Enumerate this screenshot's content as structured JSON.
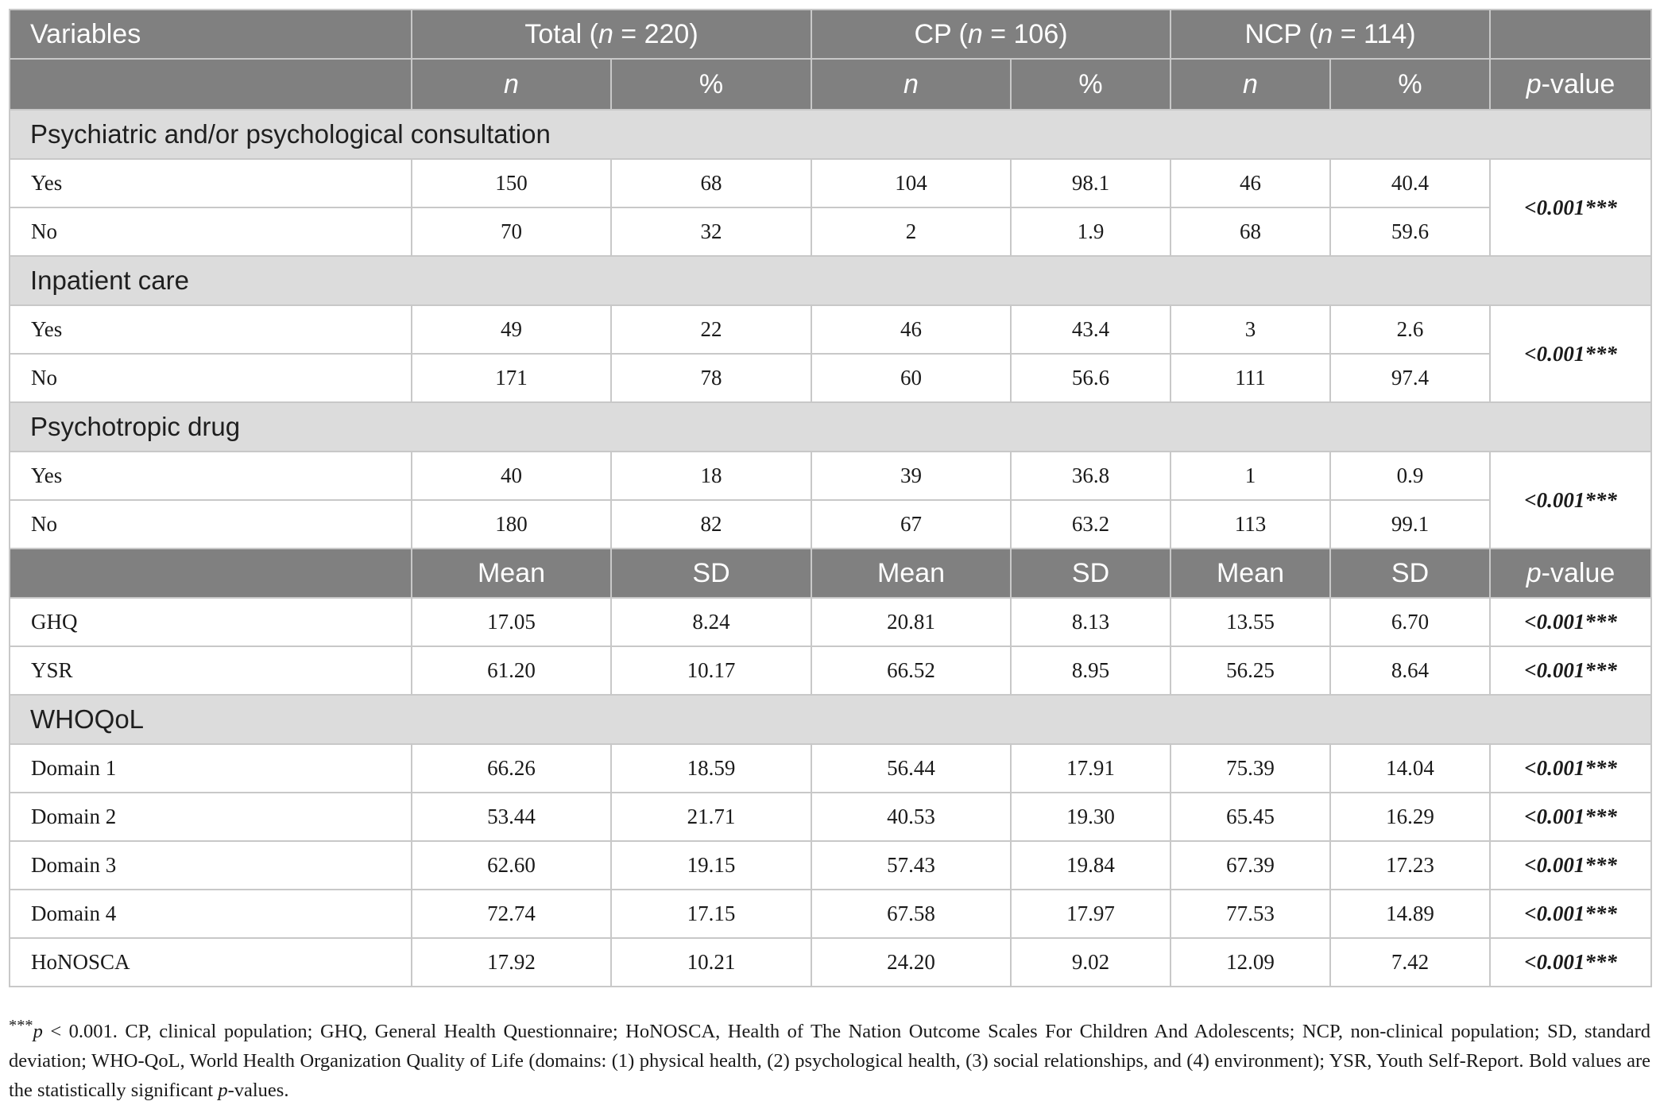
{
  "headers": {
    "variables": "Variables",
    "total": {
      "label": "Total (",
      "n": "n",
      "rest": " = 220)"
    },
    "cp": {
      "label": "CP (",
      "n": "n",
      "rest": " = 106)"
    },
    "ncp": {
      "label": "NCP (",
      "n": "n",
      "rest": " = 114)"
    },
    "n": "n",
    "pct": "%",
    "p_italic": "p",
    "p_rest": "-value",
    "mean": "Mean",
    "sd": "SD"
  },
  "sections": {
    "psych": "Psychiatric and/or psychological consultation",
    "inpatient": "Inpatient care",
    "drug": "Psychotropic drug",
    "whoqol": "WHOQoL"
  },
  "rows": {
    "psych_yes": [
      "Yes",
      "150",
      "68",
      "104",
      "98.1",
      "46",
      "40.4"
    ],
    "psych_no": [
      "No",
      "70",
      "32",
      "2",
      "1.9",
      "68",
      "59.6"
    ],
    "inp_yes": [
      "Yes",
      "49",
      "22",
      "46",
      "43.4",
      "3",
      "2.6"
    ],
    "inp_no": [
      "No",
      "171",
      "78",
      "60",
      "56.6",
      "111",
      "97.4"
    ],
    "drug_yes": [
      "Yes",
      "40",
      "18",
      "39",
      "36.8",
      "1",
      "0.9"
    ],
    "drug_no": [
      "No",
      "180",
      "82",
      "67",
      "63.2",
      "113",
      "99.1"
    ],
    "ghq": [
      "GHQ",
      "17.05",
      "8.24",
      "20.81",
      "8.13",
      "13.55",
      "6.70"
    ],
    "ysr": [
      "YSR",
      "61.20",
      "10.17",
      "66.52",
      "8.95",
      "56.25",
      "8.64"
    ],
    "d1": [
      "Domain 1",
      "66.26",
      "18.59",
      "56.44",
      "17.91",
      "75.39",
      "14.04"
    ],
    "d2": [
      "Domain 2",
      "53.44",
      "21.71",
      "40.53",
      "19.30",
      "65.45",
      "16.29"
    ],
    "d3": [
      "Domain 3",
      "62.60",
      "19.15",
      "57.43",
      "19.84",
      "67.39",
      "17.23"
    ],
    "d4": [
      "Domain 4",
      "72.74",
      "17.15",
      "67.58",
      "17.97",
      "77.53",
      "14.89"
    ],
    "honosca": [
      "HoNOSCA",
      "17.92",
      "10.21",
      "24.20",
      "9.02",
      "12.09",
      "7.42"
    ]
  },
  "pvalue": "<0.001***",
  "footnote": {
    "stars": "***",
    "p": "p",
    "text1": " < 0.001. CP, clinical population; GHQ, General Health Questionnaire; HoNOSCA, Health of The Nation Outcome Scales For Children And Adolescents; NCP, non-clinical population; SD, standard deviation; WHO-QoL, World Health Organization Quality of Life (domains: (1) physical health, (2) psychological health, (3) social relationships, and (4) environment); YSR, Youth Self-Report. Bold values are the statistically significant ",
    "p2": "p",
    "text2": "-values."
  }
}
